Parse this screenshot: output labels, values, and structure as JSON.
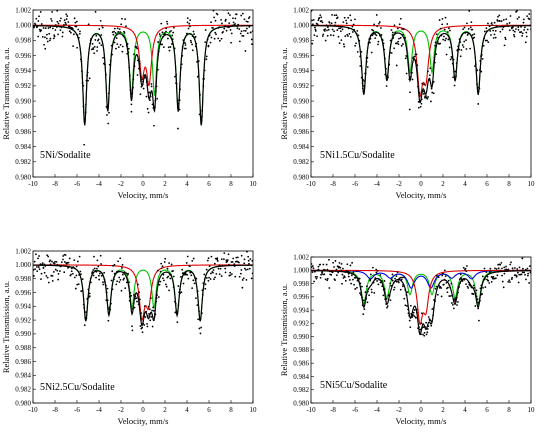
{
  "chart_data": [
    {
      "type": "scatter",
      "label": "5Ni/Sodalite",
      "xlabel": "Velocity, mm/s",
      "ylabel": "Relative Transmission, a.u.",
      "xlim": [
        -10,
        10
      ],
      "ylim": [
        0.98,
        1.002
      ],
      "xticks": [
        -10,
        -8,
        -6,
        -4,
        -2,
        0,
        2,
        4,
        6,
        8,
        10
      ],
      "yticks": [
        0.98,
        0.982,
        0.984,
        0.986,
        0.988,
        0.99,
        0.992,
        0.994,
        0.996,
        0.998,
        1.0,
        1.002
      ],
      "green_sextet": {
        "centers": [
          -5.3,
          -3.2,
          -1.05,
          1.05,
          3.2,
          5.3
        ],
        "depths": [
          0.013,
          0.011,
          0.009,
          0.009,
          0.011,
          0.013
        ],
        "hwhm": 0.22
      },
      "red_doublet": {
        "centers": [
          -0.1,
          0.55
        ],
        "depths": [
          0.006,
          0.007
        ],
        "hwhm": 0.28
      },
      "blue_sextet": null,
      "noise": 0.0012
    },
    {
      "type": "scatter",
      "label": "5Ni1.5Cu/Sodalite",
      "xlabel": "Velocity, mm/s",
      "ylabel": "Relative Transmission, a.u.",
      "xlim": [
        -10,
        10
      ],
      "ylim": [
        0.98,
        1.002
      ],
      "xticks": [
        -10,
        -8,
        -6,
        -4,
        -2,
        0,
        2,
        4,
        6,
        8,
        10
      ],
      "yticks": [
        0.98,
        0.982,
        0.984,
        0.986,
        0.988,
        0.99,
        0.992,
        0.994,
        0.996,
        0.998,
        1.0,
        1.002
      ],
      "green_sextet": {
        "centers": [
          -5.2,
          -3.1,
          -1.0,
          1.0,
          3.1,
          5.2
        ],
        "depths": [
          0.009,
          0.007,
          0.006,
          0.006,
          0.007,
          0.009
        ],
        "hwhm": 0.24
      },
      "red_doublet": {
        "centers": [
          -0.1,
          0.45
        ],
        "depths": [
          0.008,
          0.006
        ],
        "hwhm": 0.3
      },
      "blue_sextet": null,
      "noise": 0.0012
    },
    {
      "type": "scatter",
      "label": "5Ni2.5Cu/Sodalite",
      "xlabel": "Velocity, mm/s",
      "ylabel": "Relative Transmission, a.u.",
      "xlim": [
        -10,
        10
      ],
      "ylim": [
        0.98,
        1.002
      ],
      "xticks": [
        -10,
        -8,
        -6,
        -4,
        -2,
        0,
        2,
        4,
        6,
        8,
        10
      ],
      "yticks": [
        0.98,
        0.982,
        0.984,
        0.986,
        0.988,
        0.99,
        0.992,
        0.994,
        0.996,
        0.998,
        1.0,
        1.002
      ],
      "green_sextet": {
        "centers": [
          -5.2,
          -3.1,
          -1.0,
          1.0,
          3.1,
          5.2
        ],
        "depths": [
          0.008,
          0.007,
          0.006,
          0.006,
          0.007,
          0.008
        ],
        "hwhm": 0.24
      },
      "red_doublet": {
        "centers": [
          -0.1,
          0.5
        ],
        "depths": [
          0.007,
          0.005
        ],
        "hwhm": 0.3
      },
      "blue_sextet": null,
      "noise": 0.0012
    },
    {
      "type": "scatter",
      "label": "5Ni5Cu/Sodalite",
      "xlabel": "Velocity, mm/s",
      "ylabel": "Relative Transmission, a.u.",
      "xlim": [
        -10,
        10
      ],
      "ylim": [
        0.98,
        1.002
      ],
      "xticks": [
        -10,
        -8,
        -6,
        -4,
        -2,
        0,
        2,
        4,
        6,
        8,
        10
      ],
      "yticks": [
        0.98,
        0.982,
        0.984,
        0.986,
        0.988,
        0.99,
        0.992,
        0.994,
        0.996,
        0.998,
        1.0,
        1.002
      ],
      "green_sextet": {
        "centers": [
          -5.2,
          -3.1,
          -1.0,
          1.0,
          3.1,
          5.2
        ],
        "depths": [
          0.005,
          0.004,
          0.0035,
          0.0035,
          0.004,
          0.005
        ],
        "hwhm": 0.28
      },
      "red_doublet": {
        "centers": [
          -0.1,
          0.45
        ],
        "depths": [
          0.007,
          0.005
        ],
        "hwhm": 0.3
      },
      "blue_sextet": {
        "centers": [
          -4.6,
          -2.8,
          -0.9,
          0.9,
          2.8,
          4.6
        ],
        "depths": [
          0.0012,
          0.001,
          0.0025,
          0.0025,
          0.001,
          0.0012
        ],
        "hwhm": 0.4
      },
      "noise": 0.001
    }
  ],
  "colors": {
    "points": "#000000",
    "envelope": "#000000",
    "green": "#00c000",
    "red": "#e00000",
    "blue": "#0000e0"
  }
}
